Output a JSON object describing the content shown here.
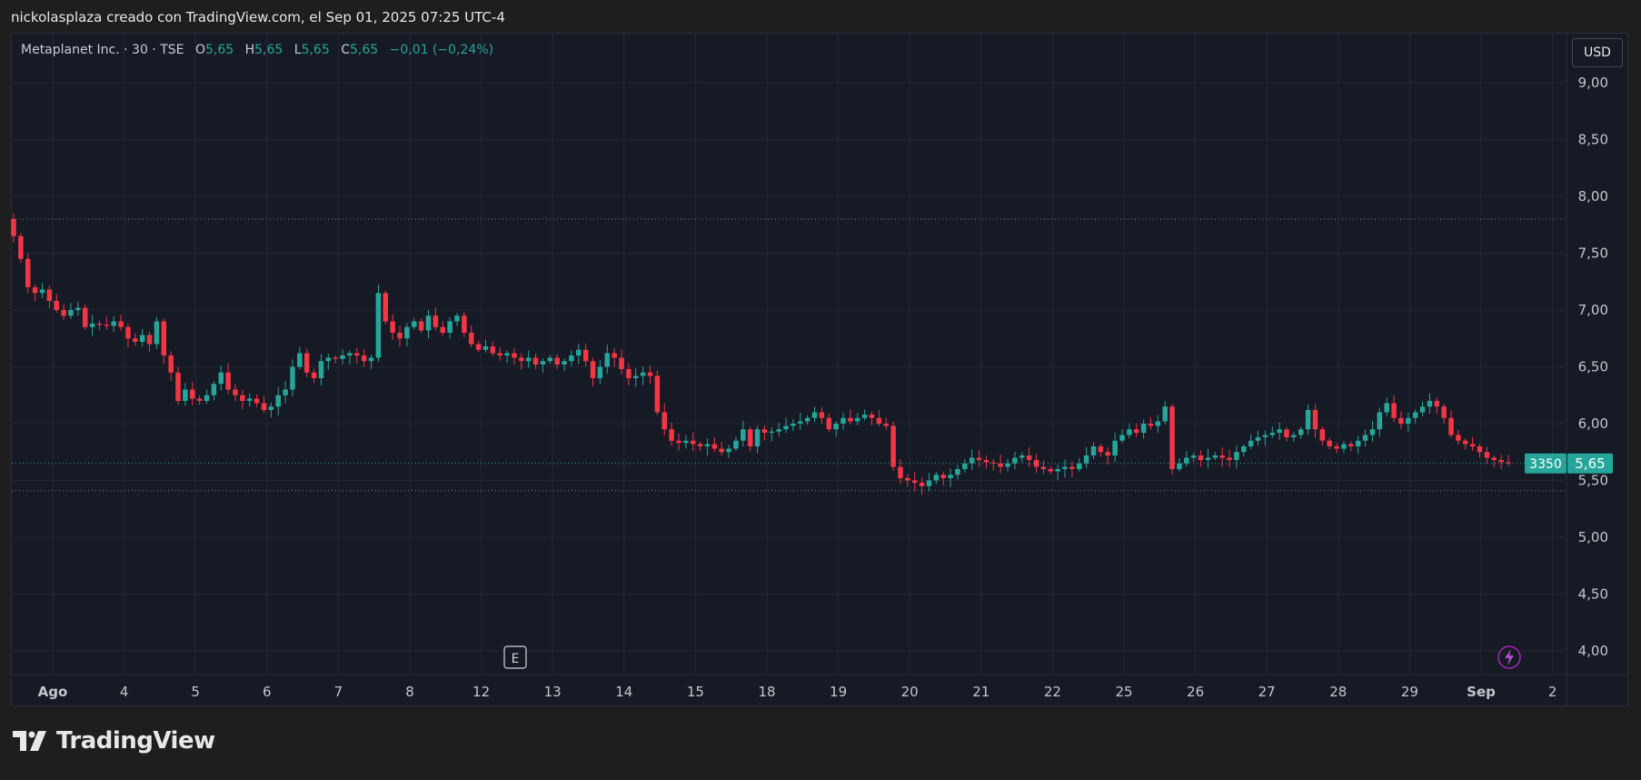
{
  "caption": "nickolasplaza creado con TradingView.com, el Sep 01, 2025 07:25 UTC-4",
  "legend": {
    "symbol": "Metaplanet Inc. · 30 · TSE",
    "open_label": "O",
    "open": "5,65",
    "high_label": "H",
    "high": "5,65",
    "low_label": "L",
    "low": "5,65",
    "close_label": "C",
    "close": "5,65",
    "change": "−0,01 (−0,24%)"
  },
  "currency_button": "USD",
  "price_tag": {
    "volume": "3350",
    "last": "5,65"
  },
  "event_marker": "E",
  "brand": "TradingView",
  "colors": {
    "up": "#26a69a",
    "down": "#f23645",
    "background": "#161a25",
    "grid": "#232734"
  },
  "chart_data": {
    "type": "candlestick",
    "y_axis": {
      "range": [
        3.85,
        9.2
      ],
      "ticks": [
        "9,00",
        "8,50",
        "8,00",
        "7,50",
        "7,00",
        "6,50",
        "6,00",
        "5,50",
        "5,00",
        "4,50",
        "4,00"
      ],
      "tick_values": [
        9.0,
        8.5,
        8.0,
        7.5,
        7.0,
        6.5,
        6.0,
        5.5,
        5.0,
        4.5,
        4.0
      ]
    },
    "x_axis": {
      "labels": [
        "Ago",
        "4",
        "5",
        "6",
        "7",
        "8",
        "12",
        "13",
        "14",
        "15",
        "18",
        "19",
        "20",
        "21",
        "22",
        "25",
        "26",
        "27",
        "28",
        "29",
        "Sep",
        "2"
      ]
    },
    "reference_lines": [
      7.8,
      5.41
    ],
    "last_price_line": 5.65,
    "closes": [
      7.65,
      7.45,
      7.2,
      7.15,
      7.18,
      7.08,
      7.0,
      6.95,
      7.0,
      7.02,
      6.85,
      6.88,
      6.87,
      6.86,
      6.9,
      6.85,
      6.75,
      6.72,
      6.78,
      6.7,
      6.9,
      6.6,
      6.45,
      6.2,
      6.3,
      6.22,
      6.2,
      6.25,
      6.35,
      6.45,
      6.3,
      6.25,
      6.2,
      6.22,
      6.18,
      6.12,
      6.15,
      6.25,
      6.3,
      6.5,
      6.62,
      6.45,
      6.4,
      6.55,
      6.58,
      6.57,
      6.6,
      6.62,
      6.6,
      6.55,
      6.58,
      7.15,
      6.9,
      6.8,
      6.75,
      6.85,
      6.9,
      6.82,
      6.95,
      6.85,
      6.8,
      6.9,
      6.95,
      6.8,
      6.7,
      6.65,
      6.68,
      6.62,
      6.6,
      6.62,
      6.58,
      6.55,
      6.58,
      6.52,
      6.55,
      6.58,
      6.52,
      6.55,
      6.6,
      6.65,
      6.55,
      6.4,
      6.5,
      6.62,
      6.58,
      6.48,
      6.4,
      6.42,
      6.45,
      6.42,
      6.1,
      5.95,
      5.85,
      5.83,
      5.85,
      5.82,
      5.8,
      5.82,
      5.78,
      5.75,
      5.78,
      5.85,
      5.95,
      5.8,
      5.95,
      5.92,
      5.93,
      5.95,
      5.98,
      6.0,
      6.02,
      6.05,
      6.1,
      6.05,
      5.95,
      6.0,
      6.05,
      6.02,
      6.05,
      6.08,
      6.05,
      6.0,
      5.98,
      5.62,
      5.52,
      5.5,
      5.48,
      5.45,
      5.5,
      5.55,
      5.52,
      5.55,
      5.6,
      5.65,
      5.7,
      5.68,
      5.66,
      5.65,
      5.62,
      5.65,
      5.7,
      5.72,
      5.68,
      5.62,
      5.6,
      5.58,
      5.6,
      5.62,
      5.6,
      5.65,
      5.72,
      5.8,
      5.75,
      5.72,
      5.85,
      5.9,
      5.95,
      5.92,
      6.0,
      5.98,
      6.02,
      6.15,
      5.6,
      5.65,
      5.7,
      5.72,
      5.68,
      5.7,
      5.72,
      5.7,
      5.68,
      5.75,
      5.8,
      5.85,
      5.88,
      5.9,
      5.92,
      5.95,
      5.88,
      5.9,
      5.95,
      6.12,
      5.95,
      5.85,
      5.8,
      5.78,
      5.82,
      5.8,
      5.85,
      5.9,
      5.95,
      6.1,
      6.18,
      6.05,
      6.0,
      6.05,
      6.1,
      6.15,
      6.2,
      6.15,
      6.05,
      5.9,
      5.85,
      5.82,
      5.8,
      5.75,
      5.7,
      5.68,
      5.66,
      5.65
    ]
  }
}
